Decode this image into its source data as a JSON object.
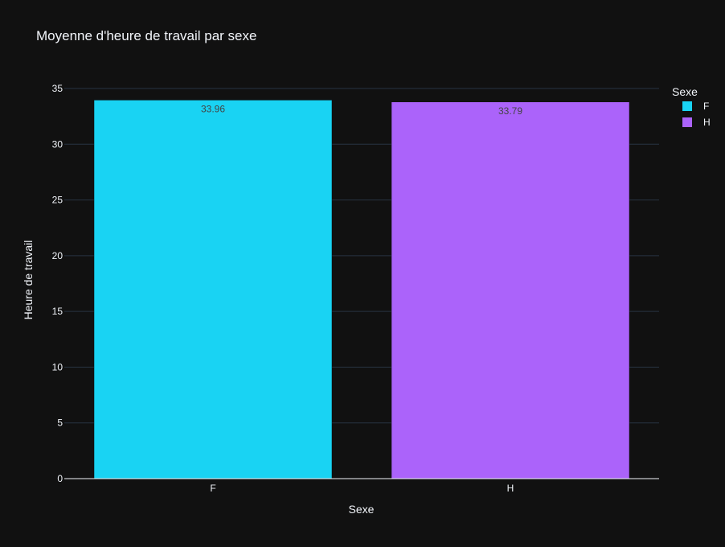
{
  "chart_data": {
    "type": "bar",
    "title": "Moyenne d'heure de travail par sexe",
    "xlabel": "Sexe",
    "ylabel": "Heure de travail",
    "categories": [
      "F",
      "H"
    ],
    "series": [
      {
        "name": "F",
        "color": "#19d3f3",
        "values": [
          33.96,
          null
        ]
      },
      {
        "name": "H",
        "color": "#ab63fa",
        "values": [
          null,
          33.79
        ]
      }
    ],
    "data_labels": [
      "33.96",
      "33.79"
    ],
    "ylim": [
      0,
      35
    ],
    "yticks": [
      0,
      5,
      10,
      15,
      20,
      25,
      30,
      35
    ],
    "grid": true,
    "legend": {
      "title": "Sexe",
      "position": "top-right",
      "items": [
        "F",
        "H"
      ]
    },
    "colors": {
      "background": "#111111",
      "grid": "#283442",
      "text": "#f2f5fa",
      "data_label": "#444444"
    }
  }
}
